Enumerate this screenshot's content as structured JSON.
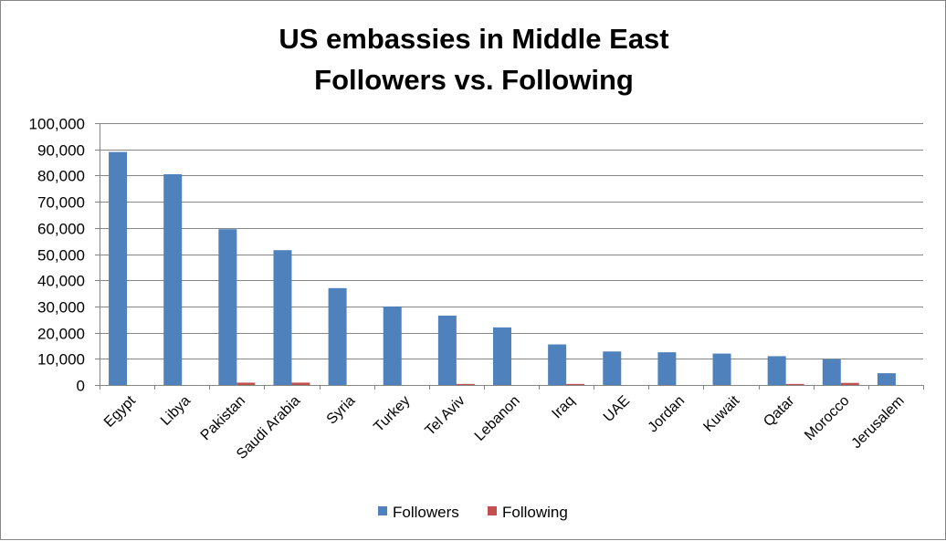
{
  "chart_data": {
    "type": "bar",
    "title": "US embassies in Middle East",
    "subtitle": "Followers vs. Following",
    "xlabel": "",
    "ylabel": "",
    "ylim": [
      0,
      100000
    ],
    "yticks": [
      0,
      10000,
      20000,
      30000,
      40000,
      50000,
      60000,
      70000,
      80000,
      90000,
      100000
    ],
    "ytick_labels": [
      "0",
      "10,000",
      "20,000",
      "30,000",
      "40,000",
      "50,000",
      "60,000",
      "70,000",
      "80,000",
      "90,000",
      "100,000"
    ],
    "grid": true,
    "legend_position": "bottom",
    "categories": [
      "Egypt",
      "Libya",
      "Pakistan",
      "Saudi Arabia",
      "Syria",
      "Turkey",
      "Tel Aviv",
      "Lebanon",
      "Iraq",
      "UAE",
      "Jordan",
      "Kuwait",
      "Qatar",
      "Morocco",
      "Jerusalem"
    ],
    "series": [
      {
        "name": "Followers",
        "color": "#4F81BD",
        "values": [
          89000,
          80500,
          59500,
          51500,
          37000,
          30000,
          26500,
          22000,
          15500,
          12800,
          12500,
          12000,
          11000,
          9800,
          4500
        ]
      },
      {
        "name": "Following",
        "color": "#C0504D",
        "values": [
          0,
          0,
          900,
          900,
          0,
          0,
          400,
          0,
          400,
          0,
          0,
          0,
          400,
          800,
          0
        ]
      }
    ]
  }
}
